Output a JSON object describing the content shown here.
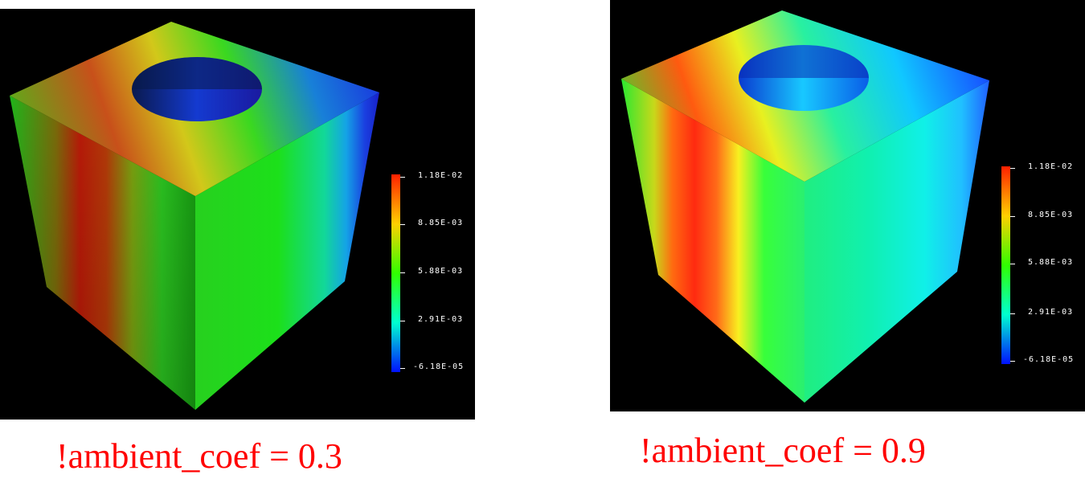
{
  "panels": [
    {
      "caption": "!ambient_coef = 0.3",
      "colorbar": {
        "labels": [
          "1.18E-02",
          "8.85E-03",
          "5.88E-03",
          "2.91E-03",
          "-6.18E-05"
        ],
        "colors": [
          "#ff2000",
          "#ffd000",
          "#30ff00",
          "#00ffd0",
          "#0010ff"
        ]
      }
    },
    {
      "caption": "!ambient_coef = 0.9",
      "colorbar": {
        "labels": [
          "1.18E-02",
          "8.85E-03",
          "5.88E-03",
          "2.91E-03",
          "-6.18E-05"
        ],
        "colors": [
          "#ff2000",
          "#ffd000",
          "#30ff00",
          "#00ffd0",
          "#0010ff"
        ]
      }
    }
  ]
}
